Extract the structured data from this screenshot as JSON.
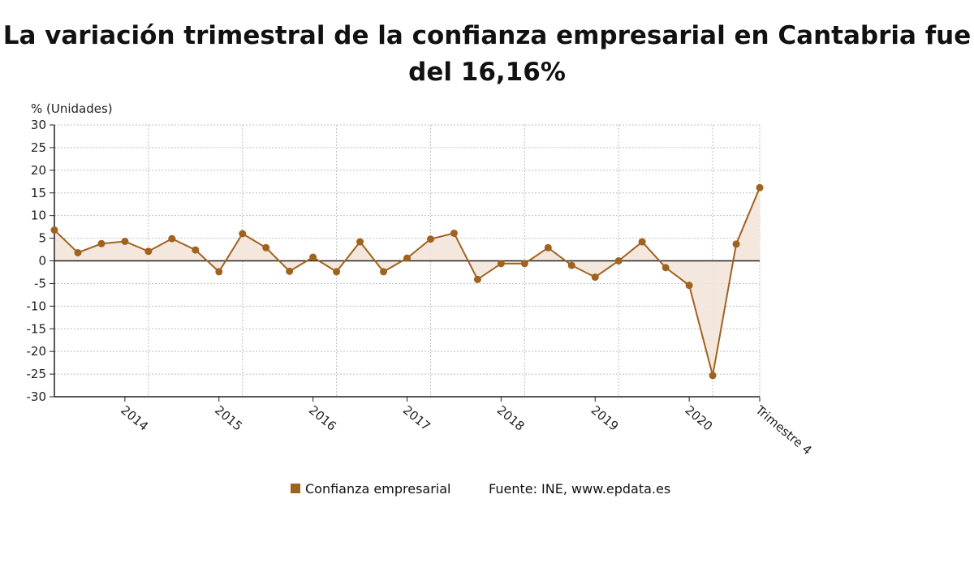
{
  "title_line1": "La variación trimestral de la confianza empresarial en Cantabria fue",
  "title_line2": "del 16,16%",
  "source": "Fuente: INE, www.epdata.es",
  "colors": {
    "line": "#a0621f",
    "fill": "#f3e6da",
    "grid": "#bfbfbf",
    "zero": "#222222"
  },
  "chart_data": {
    "type": "line",
    "ylabel": "% (Unidades)",
    "ylim": [
      -30,
      30
    ],
    "y_ticks": [
      30,
      25,
      20,
      15,
      10,
      5,
      0,
      -5,
      -10,
      -15,
      -20,
      -25,
      -30
    ],
    "x_labels": [
      "2014",
      "2015",
      "2016",
      "2017",
      "2018",
      "2019",
      "2020",
      "Trimestre 4"
    ],
    "x_label_indices": [
      3,
      7,
      11,
      15,
      19,
      23,
      27,
      30
    ],
    "grid": true,
    "legend_position": "bottom",
    "series": [
      {
        "name": "Confianza empresarial",
        "values": [
          6.8,
          1.8,
          3.8,
          4.3,
          2.1,
          4.9,
          2.4,
          -2.4,
          6.0,
          2.9,
          -2.3,
          0.8,
          -2.4,
          4.2,
          -2.4,
          0.6,
          4.8,
          6.1,
          -4.1,
          -0.6,
          -0.6,
          2.9,
          -1.0,
          -3.6,
          0.0,
          4.2,
          -1.5,
          -5.4,
          -25.3,
          3.7,
          16.16
        ]
      }
    ]
  }
}
